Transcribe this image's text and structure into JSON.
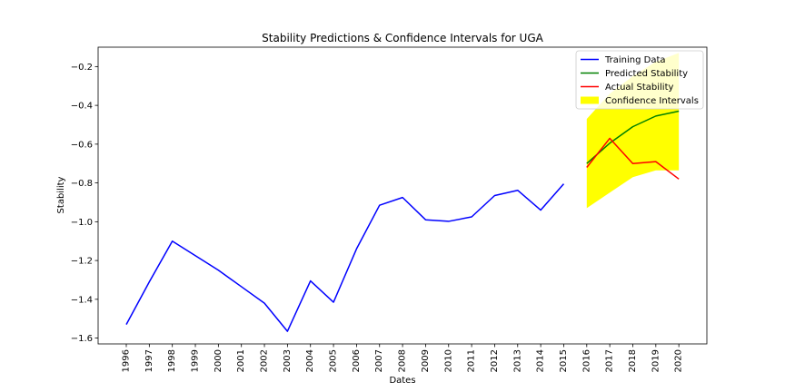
{
  "chart_data": {
    "type": "line",
    "title": "Stability Predictions & Confidence Intervals for UGA",
    "xlabel": "Dates",
    "ylabel": "Stability",
    "categories": [
      "1996",
      "1997",
      "1998",
      "1999",
      "2000",
      "2001",
      "2002",
      "2003",
      "2004",
      "2005",
      "2006",
      "2007",
      "2008",
      "2009",
      "2010",
      "2011",
      "2012",
      "2013",
      "2014",
      "2015",
      "2016",
      "2017",
      "2018",
      "2019",
      "2020"
    ],
    "yticks": [
      -1.6,
      -1.4,
      -1.2,
      -1.0,
      -0.8,
      -0.6,
      -0.4,
      -0.2
    ],
    "ytick_labels": [
      "−1.6",
      "−1.4",
      "−1.2",
      "−1.0",
      "−0.8",
      "−0.6",
      "−0.4",
      "−0.2"
    ],
    "ylim": [
      -1.63,
      -0.1
    ],
    "grid": false,
    "legend_position": "top-right",
    "series": [
      {
        "name": "Training Data",
        "color": "#0000ff",
        "x": [
          "1996",
          "1997",
          "1998",
          "1999",
          "2000",
          "2001",
          "2002",
          "2003",
          "2004",
          "2005",
          "2006",
          "2007",
          "2008",
          "2009",
          "2010",
          "2011",
          "2012",
          "2013",
          "2014",
          "2015"
        ],
        "values": [
          -1.53,
          -1.31,
          -1.1,
          -1.175,
          -1.25,
          -1.335,
          -1.42,
          -1.565,
          -1.305,
          -1.415,
          -1.14,
          -0.915,
          -0.875,
          -0.99,
          -0.998,
          -0.975,
          -0.865,
          -0.838,
          -0.94,
          -0.805
        ]
      },
      {
        "name": "Predicted Stability",
        "color": "#008000",
        "x": [
          "2016",
          "2017",
          "2018",
          "2019",
          "2020"
        ],
        "values": [
          -0.7,
          -0.595,
          -0.51,
          -0.455,
          -0.43
        ]
      },
      {
        "name": "Actual Stability",
        "color": "#ff0000",
        "x": [
          "2016",
          "2017",
          "2018",
          "2019",
          "2020"
        ],
        "values": [
          -0.72,
          -0.57,
          -0.7,
          -0.69,
          -0.78
        ]
      }
    ],
    "confidence_interval": {
      "name": "Confidence Intervals",
      "color": "#ffff00",
      "x": [
        "2016",
        "2017",
        "2018",
        "2019",
        "2020"
      ],
      "lower": [
        -0.93,
        -0.85,
        -0.77,
        -0.735,
        -0.735
      ],
      "upper": [
        -0.47,
        -0.34,
        -0.25,
        -0.175,
        -0.13
      ]
    }
  }
}
